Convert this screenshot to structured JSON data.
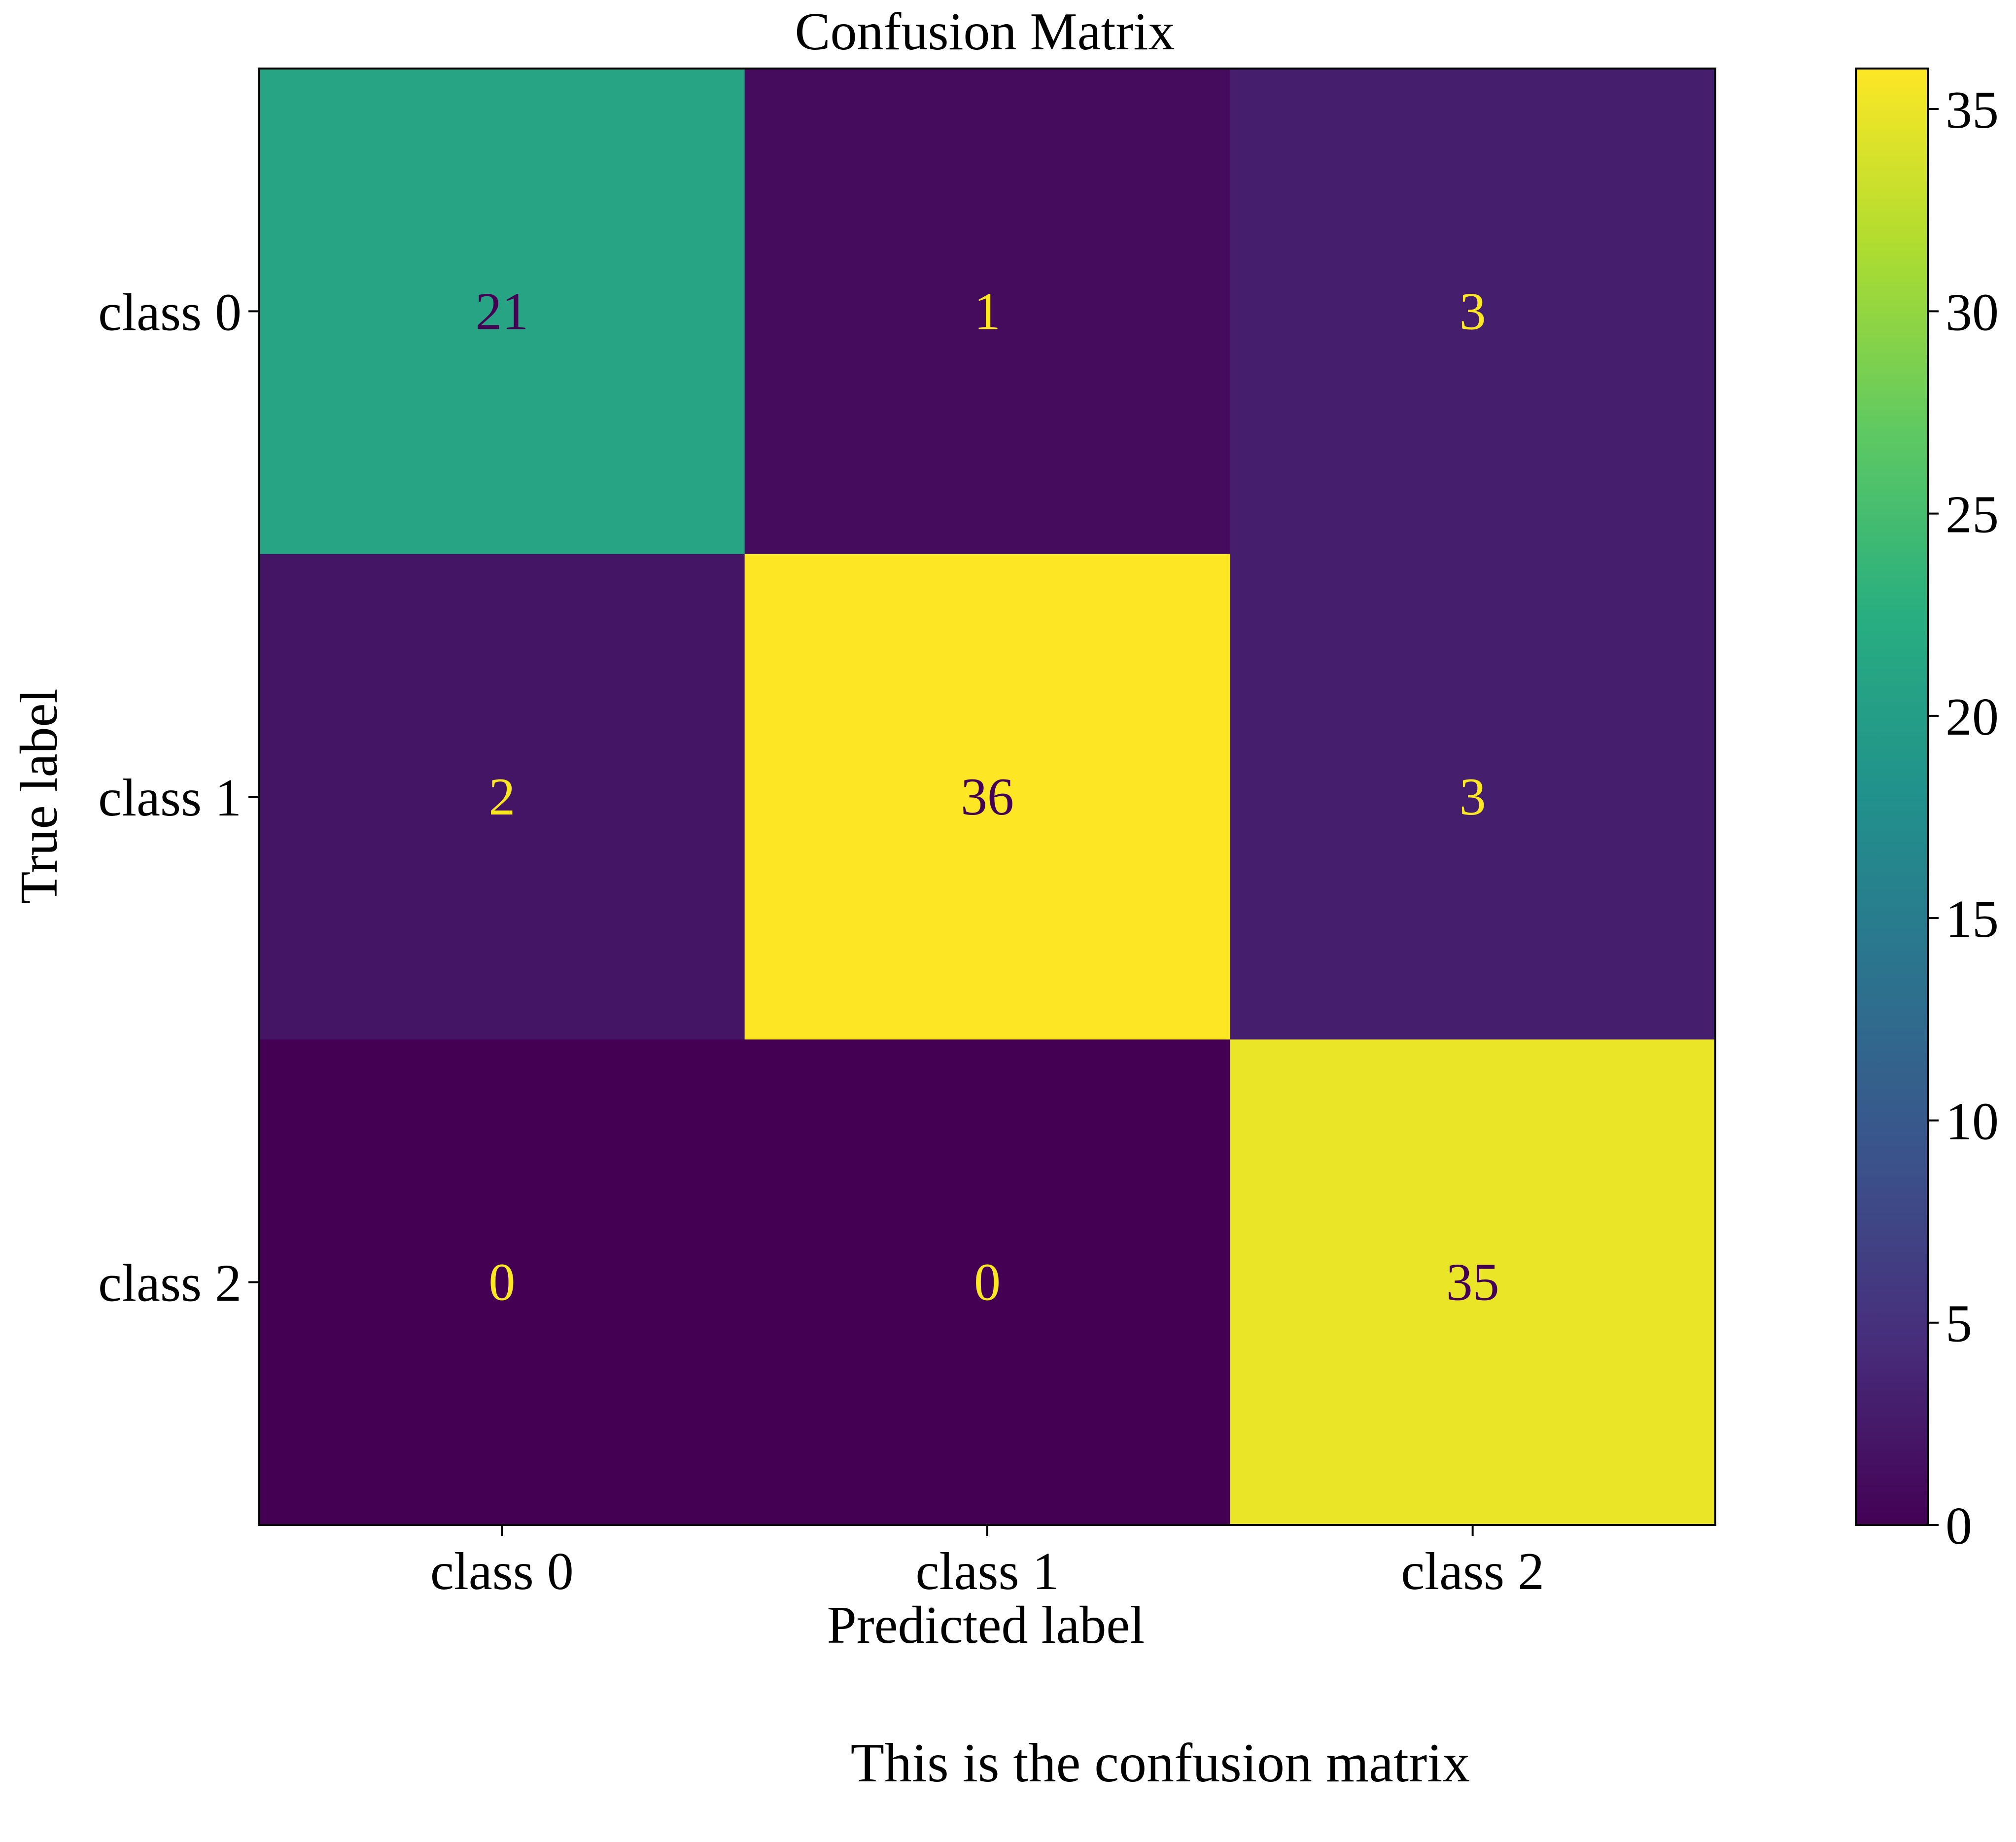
{
  "chart_data": {
    "type": "heatmap",
    "title": "Confusion Matrix",
    "xlabel": "Predicted label",
    "ylabel": "True label",
    "x_categories": [
      "class 0",
      "class 1",
      "class 2"
    ],
    "y_categories": [
      "class 0",
      "class 1",
      "class 2"
    ],
    "values": [
      [
        21,
        1,
        3
      ],
      [
        2,
        36,
        3
      ],
      [
        0,
        0,
        35
      ]
    ],
    "colormap": "viridis",
    "vmin": 0,
    "vmax": 36,
    "colorbar_ticks": [
      "0",
      "5",
      "10",
      "15",
      "20",
      "25",
      "30",
      "35"
    ],
    "colorbar_tick_values": [
      0,
      5,
      10,
      15,
      20,
      25,
      30,
      35
    ],
    "caption": "This is the confusion matrix"
  },
  "colors": {
    "text_dark": "#440154",
    "text_light": "#fde725",
    "axis": "#000000",
    "background": "#ffffff"
  }
}
